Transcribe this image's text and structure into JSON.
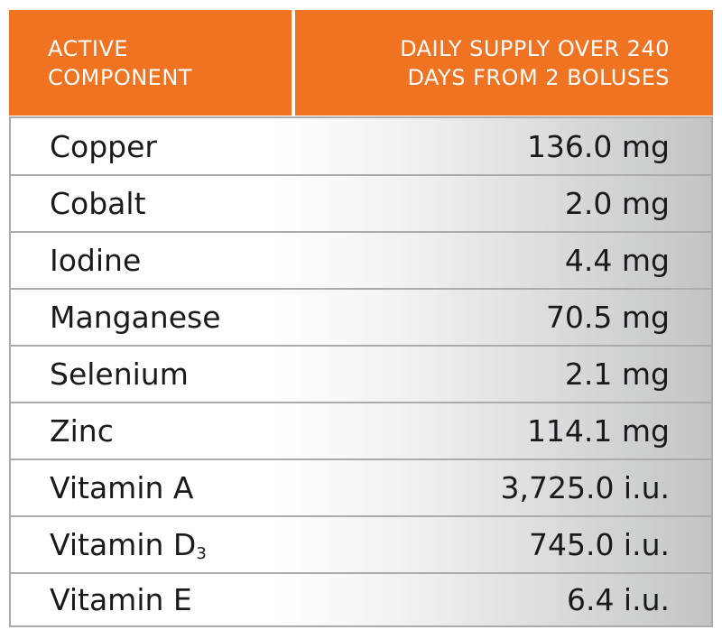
{
  "header": {
    "component_line1": "ACTIVE",
    "component_line2": "COMPONENT",
    "supply_line1": "DAILY SUPPLY OVER 240",
    "supply_line2": "DAYS FROM 2 BOLUSES"
  },
  "rows": [
    {
      "name": "Copper",
      "value": "136.0 mg"
    },
    {
      "name": "Cobalt",
      "value": "2.0 mg"
    },
    {
      "name": "Iodine",
      "value": "4.4 mg"
    },
    {
      "name": "Manganese",
      "value": "70.5 mg"
    },
    {
      "name": "Selenium",
      "value": "2.1 mg"
    },
    {
      "name": "Zinc",
      "value": "114.1 mg"
    },
    {
      "name": "Vitamin A",
      "value": "3,725.0 i.u."
    },
    {
      "name": "Vitamin D",
      "subscript": "3",
      "value": "745.0 i.u."
    },
    {
      "name": "Vitamin E",
      "value": "6.4 i.u."
    }
  ],
  "colors": {
    "header_bg": "#f07322",
    "header_text": "#ffffff",
    "border": "#a9abae",
    "gradient_end": "#c3c4c7"
  }
}
